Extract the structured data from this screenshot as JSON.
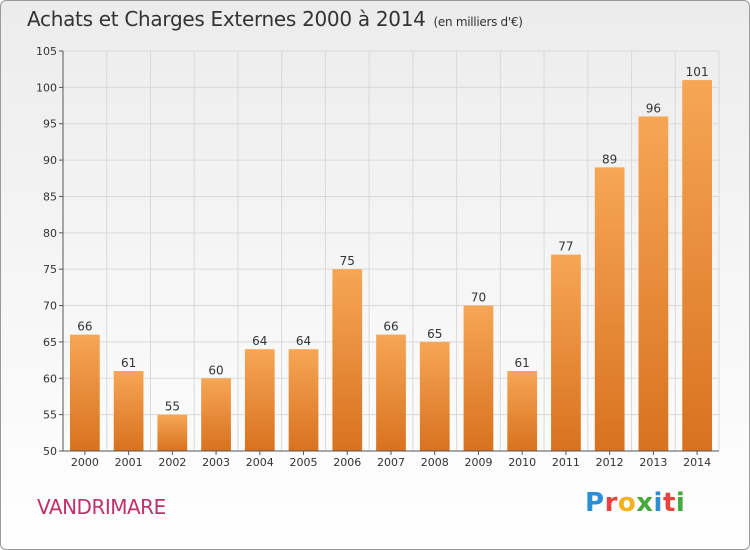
{
  "header": {
    "title": "Achats et Charges Externes 2000 à 2014",
    "unit": "(en milliers d'€)"
  },
  "commune": "VANDRIMARE",
  "brand": {
    "name": "Proxiti",
    "letters": [
      "P",
      "r",
      "o",
      "x",
      "i",
      "t",
      "i"
    ],
    "letter_colors": [
      "#2a8fd6",
      "#e8433c",
      "#f5b11a",
      "#44ab3a",
      "#2a8fd6",
      "#e8433c",
      "#44ab3a"
    ]
  },
  "colors": {
    "bar_light": "#f6a655",
    "bar_dark": "#d8721f",
    "grid": "#d9d9d9",
    "axis": "#555555",
    "text": "#333333"
  },
  "chart_data": {
    "type": "bar",
    "title": "Achats et Charges Externes 2000 à 2014",
    "subtitle": "(en milliers d'€)",
    "categories": [
      "2000",
      "2001",
      "2002",
      "2003",
      "2004",
      "2005",
      "2006",
      "2007",
      "2008",
      "2009",
      "2010",
      "2011",
      "2012",
      "2013",
      "2014"
    ],
    "values": [
      66,
      61,
      55,
      60,
      64,
      64,
      75,
      66,
      65,
      70,
      61,
      77,
      89,
      96,
      101
    ],
    "ylim": [
      50,
      105
    ],
    "yticks": [
      50,
      55,
      60,
      65,
      70,
      75,
      80,
      85,
      90,
      95,
      100,
      105
    ],
    "grid": true,
    "data_labels": true
  }
}
